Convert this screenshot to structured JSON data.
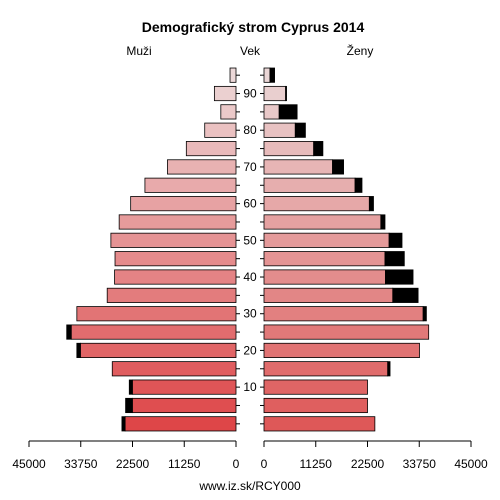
{
  "chart_data": {
    "type": "bar",
    "orientation": "horizontal",
    "subtype": "population-pyramid",
    "title": "Demografický strom Cyprus 2014",
    "left_label": "Muži",
    "center_label": "Vek",
    "right_label": "Ženy",
    "footer": "www.iz.sk/RCY000",
    "age_groups": [
      "0-4",
      "5-9",
      "10-14",
      "15-19",
      "20-24",
      "25-29",
      "30-34",
      "35-39",
      "40-44",
      "45-49",
      "50-54",
      "55-59",
      "60-64",
      "65-69",
      "70-74",
      "75-79",
      "80-84",
      "85-89",
      "90-94",
      "95+"
    ],
    "age_ticks": [
      "10",
      "20",
      "30",
      "40",
      "50",
      "60",
      "70",
      "80",
      "90"
    ],
    "x_ticks": [
      "45000",
      "33750",
      "22500",
      "11250",
      "0",
      "0",
      "11250",
      "22500",
      "33750",
      "45000"
    ],
    "xlim": [
      0,
      45000
    ],
    "series": [
      {
        "name": "Muži",
        "values": [
          24800,
          24000,
          23200,
          26900,
          34600,
          36800,
          34600,
          28000,
          26400,
          26300,
          27200,
          25400,
          22900,
          19800,
          14900,
          10800,
          6800,
          3300,
          4700,
          1300
        ]
      },
      {
        "name": "Ženy",
        "values": [
          24100,
          22500,
          22500,
          27400,
          33800,
          35800,
          35300,
          33500,
          32400,
          30500,
          30000,
          26300,
          23800,
          21300,
          17300,
          12800,
          9000,
          7200,
          4900,
          2300
        ]
      }
    ],
    "excess_color": "#000000",
    "colors": {
      "men_base": [
        222,
        70,
        72
      ],
      "men_top": [
        236,
        216,
        216
      ],
      "women_base": [
        222,
        88,
        88
      ],
      "women_top": [
        234,
        214,
        214
      ]
    }
  }
}
